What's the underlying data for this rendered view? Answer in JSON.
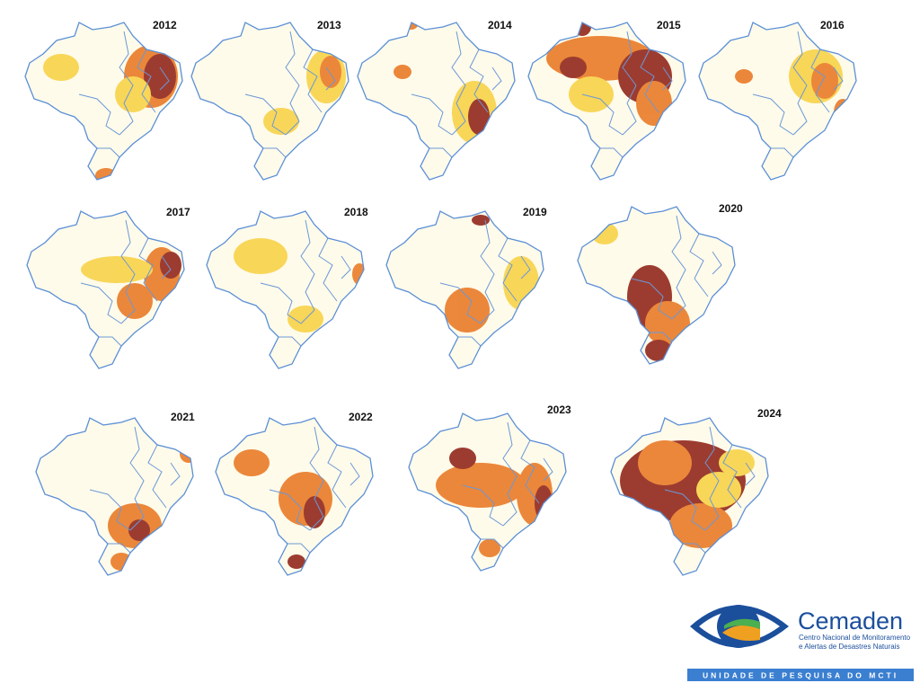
{
  "maps": [
    {
      "year": "2012"
    },
    {
      "year": "2013"
    },
    {
      "year": "2014"
    },
    {
      "year": "2015"
    },
    {
      "year": "2016"
    },
    {
      "year": "2017"
    },
    {
      "year": "2018"
    },
    {
      "year": "2019"
    },
    {
      "year": "2020"
    },
    {
      "year": "2021"
    },
    {
      "year": "2022"
    },
    {
      "year": "2023"
    },
    {
      "year": "2024"
    }
  ],
  "logo": {
    "name": "Cemaden",
    "line1": "Centro Nacional de Monitoramento",
    "line2": "e Alertas de Desastres Naturais",
    "banner": "UNIDADE DE PESQUISA DO MCTI"
  }
}
